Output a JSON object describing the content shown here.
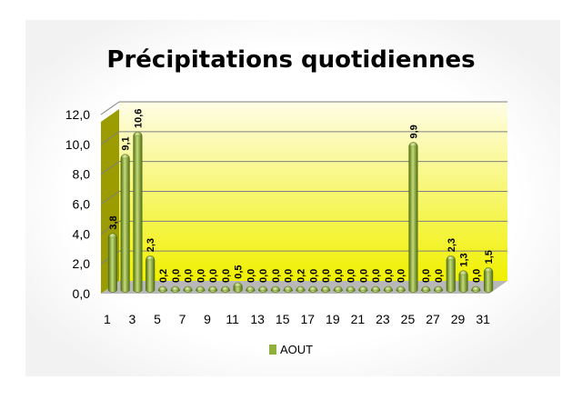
{
  "colors": {
    "plot_top": "#fffde6",
    "plot_bottom": "#f0f000",
    "bar_light": "#c6db7a",
    "bar_mid": "#8fb03a",
    "bar_dark": "#4f6e12",
    "floor": "#b8b8b8",
    "side_wall": "#9c9c00",
    "grid": "#7f7f7f"
  },
  "chart_data": {
    "type": "bar",
    "title": "Précipitations quotidiennes",
    "xlabel": "",
    "ylabel": "",
    "ylim": [
      0,
      12
    ],
    "yticks": [
      "0,0",
      "2,0",
      "4,0",
      "6,0",
      "8,0",
      "10,0",
      "12,0"
    ],
    "grid": true,
    "legend_position": "bottom",
    "x_tick_labels": [
      "1",
      "3",
      "5",
      "7",
      "9",
      "11",
      "13",
      "15",
      "17",
      "19",
      "21",
      "23",
      "25",
      "27",
      "29",
      "31"
    ],
    "categories": [
      1,
      2,
      3,
      4,
      5,
      6,
      7,
      8,
      9,
      10,
      11,
      12,
      13,
      14,
      15,
      16,
      17,
      18,
      19,
      20,
      21,
      22,
      23,
      24,
      25,
      26,
      27,
      28,
      29,
      30,
      31
    ],
    "series": [
      {
        "name": "AOUT",
        "values": [
          3.8,
          9.1,
          10.6,
          2.3,
          0.2,
          0,
          0,
          0,
          0,
          0,
          0.5,
          0,
          0,
          0,
          0,
          0.2,
          0,
          0,
          0,
          0,
          0,
          0,
          0,
          0,
          9.9,
          0,
          0,
          2.3,
          1.3,
          0,
          1.5
        ],
        "labels": [
          "3,8",
          "9,1",
          "10,6",
          "2,3",
          "0,2",
          "0,0",
          "0,0",
          "0,0",
          "0,0",
          "0,0",
          "0,5",
          "0,0",
          "0,0",
          "0,0",
          "0,0",
          "0,2",
          "0,0",
          "0,0",
          "0,0",
          "0,0",
          "0,0",
          "0,0",
          "0,0",
          "0,0",
          "9,9",
          "0,0",
          "0,0",
          "2,3",
          "1,3",
          "0,0",
          "1,5"
        ]
      }
    ]
  }
}
